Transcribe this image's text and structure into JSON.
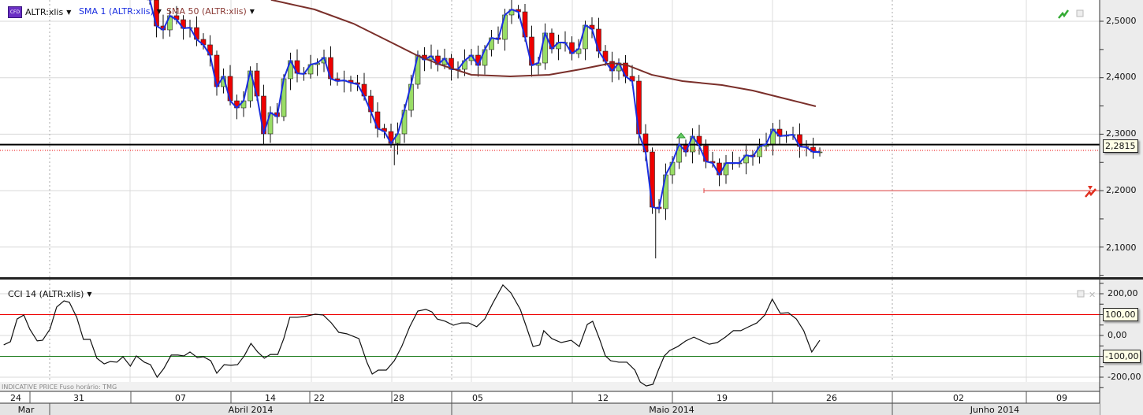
{
  "legend": {
    "symbol": "ALTR:xlis",
    "symbol_badge": "CFD",
    "sma1": "SMA 1 (ALTR:xlis)",
    "sma50": "SMA 50 (ALTR:xlis)",
    "cci": "CCI 14 (ALTR:xlis)"
  },
  "footer_note": "INDICATIVE PRICE   Fuso horário: TMG",
  "colors": {
    "up": "#99dd66",
    "down": "#ee0000",
    "sma1": "#1a2ee0",
    "sma50": "#7a2f2a",
    "cci": "#111111",
    "cci_upper": "#ee0000",
    "cci_lower": "#1a7a1a"
  },
  "price_axis": {
    "ticks": [
      "2,5000",
      "2,4000",
      "2,3000",
      "2,2000",
      "2,1000"
    ],
    "tick_values": [
      2.5,
      2.4,
      2.3,
      2.2,
      2.1
    ],
    "last_price_label": "2,2815"
  },
  "cci_axis": {
    "ticks": [
      "200,00",
      "0,00",
      "-200,00"
    ],
    "tick_values": [
      200,
      0,
      -200
    ],
    "upper_label": "100,00",
    "lower_label": "-100,00",
    "upper": 100,
    "lower": -100
  },
  "date_axis": {
    "days": [
      "24",
      "31",
      "07",
      "14",
      "22",
      "28",
      "05",
      "12",
      "19",
      "26",
      "02",
      "09"
    ],
    "months": [
      "Mar",
      "Abril 2014",
      "Maio 2014",
      "Junho 2014"
    ]
  },
  "chart_data": {
    "type": "candlestick",
    "price_range": [
      2.06,
      2.54
    ],
    "closes": [
      2.5377,
      2.4916,
      2.4847,
      2.5098,
      2.5028,
      2.4874,
      2.4888,
      2.4679,
      2.4582,
      2.44,
      2.3842,
      2.4024,
      2.3591,
      2.3466,
      2.3591,
      2.4121,
      2.3675,
      2.3006,
      2.3382,
      2.3312,
      2.3982,
      2.4303,
      2.4079,
      2.4066,
      2.4233,
      2.4261,
      2.4358,
      2.3982,
      2.394,
      2.3954,
      2.3912,
      2.3884,
      2.3675,
      2.3396,
      2.3103,
      2.3047,
      2.2838,
      2.3006,
      2.3424,
      2.3884,
      2.44,
      2.4317,
      2.4386,
      2.4233,
      2.4344,
      2.4149,
      2.4149,
      2.4303,
      2.44,
      2.4219,
      2.4498,
      2.4707,
      2.4679,
      2.5112,
      2.5209,
      2.5167,
      2.4721,
      2.4219,
      2.4261,
      2.4791,
      2.4512,
      2.4623,
      2.4623,
      2.4428,
      2.4512,
      2.493,
      2.4861,
      2.447,
      2.4289,
      2.4121,
      2.4261,
      2.4024,
      2.394,
      2.3006,
      2.2685,
      2.1709,
      2.1681,
      2.228,
      2.2503,
      2.2824,
      2.2685,
      2.2964,
      2.2796,
      2.2517,
      2.249,
      2.228,
      2.249,
      2.249,
      2.249,
      2.2629,
      2.2601,
      2.2782,
      2.2824,
      2.3089,
      2.2964,
      2.2978,
      2.2992,
      2.2782,
      2.2768,
      2.2685,
      2.2685
    ],
    "sma50": [
      [
        18.1,
        2.538
      ],
      [
        24.6,
        2.5209
      ],
      [
        30.4,
        2.4958
      ],
      [
        36.3,
        2.4609
      ],
      [
        39.8,
        2.44
      ],
      [
        43.3,
        2.4233
      ],
      [
        48,
        2.4052
      ],
      [
        53.8,
        2.4024
      ],
      [
        59.6,
        2.4052
      ],
      [
        64.3,
        2.4149
      ],
      [
        69,
        2.4261
      ],
      [
        71.3,
        2.4219
      ],
      [
        74.9,
        2.4052
      ],
      [
        79.5,
        2.394
      ],
      [
        85.4,
        2.387
      ],
      [
        90,
        2.3773
      ],
      [
        94.7,
        2.3633
      ],
      [
        99.4,
        2.3494
      ]
    ],
    "cci": [
      [
        -21.8,
        -45
      ],
      [
        -20.8,
        -30
      ],
      [
        -19.8,
        79
      ],
      [
        -18.8,
        98
      ],
      [
        -17.9,
        30
      ],
      [
        -16.8,
        -26
      ],
      [
        -16,
        -23
      ],
      [
        -14.9,
        30
      ],
      [
        -13.9,
        136
      ],
      [
        -12.8,
        166
      ],
      [
        -12,
        159
      ],
      [
        -10.9,
        87
      ],
      [
        -9.9,
        -19
      ],
      [
        -8.9,
        -19
      ],
      [
        -7.9,
        -109
      ],
      [
        -6.8,
        -136
      ],
      [
        -5.9,
        -125
      ],
      [
        -4.9,
        -128
      ],
      [
        -4,
        -102
      ],
      [
        -2.9,
        -147
      ],
      [
        -2,
        -98
      ],
      [
        -0.8,
        -128
      ],
      [
        0.1,
        -140
      ],
      [
        1.1,
        -200
      ],
      [
        2.1,
        -158
      ],
      [
        3.2,
        -94
      ],
      [
        4.2,
        -94
      ],
      [
        5.1,
        -98
      ],
      [
        6,
        -79
      ],
      [
        7.1,
        -106
      ],
      [
        8,
        -102
      ],
      [
        9.1,
        -121
      ],
      [
        10,
        -181
      ],
      [
        11.1,
        -140
      ],
      [
        12.1,
        -143
      ],
      [
        13.1,
        -140
      ],
      [
        14.1,
        -98
      ],
      [
        15.1,
        -38
      ],
      [
        16.1,
        -79
      ],
      [
        17.1,
        -109
      ],
      [
        18,
        -91
      ],
      [
        19.1,
        -91
      ],
      [
        20,
        -15
      ],
      [
        20.9,
        87
      ],
      [
        22,
        87
      ],
      [
        23.2,
        91
      ],
      [
        24.7,
        102
      ],
      [
        25.9,
        98
      ],
      [
        27.1,
        60
      ],
      [
        28.2,
        15
      ],
      [
        29.4,
        8
      ],
      [
        31.2,
        -15
      ],
      [
        32.4,
        -128
      ],
      [
        33.2,
        -185
      ],
      [
        34.1,
        -166
      ],
      [
        35.3,
        -166
      ],
      [
        36.5,
        -121
      ],
      [
        37.6,
        -53
      ],
      [
        38.8,
        42
      ],
      [
        40,
        117
      ],
      [
        41.2,
        125
      ],
      [
        42.1,
        113
      ],
      [
        42.9,
        79
      ],
      [
        44.1,
        68
      ],
      [
        45.3,
        49
      ],
      [
        46.5,
        60
      ],
      [
        47.6,
        60
      ],
      [
        48.8,
        42
      ],
      [
        50,
        79
      ],
      [
        51.2,
        155
      ],
      [
        52.7,
        242
      ],
      [
        53.9,
        204
      ],
      [
        55.3,
        125
      ],
      [
        56.2,
        42
      ],
      [
        57.2,
        -53
      ],
      [
        58.2,
        -45
      ],
      [
        58.8,
        23
      ],
      [
        60,
        -15
      ],
      [
        61.4,
        -34
      ],
      [
        62.9,
        -23
      ],
      [
        64.1,
        -53
      ],
      [
        65.3,
        53
      ],
      [
        66.1,
        68
      ],
      [
        67.1,
        -15
      ],
      [
        68,
        -98
      ],
      [
        68.8,
        -121
      ],
      [
        70,
        -128
      ],
      [
        71.2,
        -128
      ],
      [
        72.4,
        -166
      ],
      [
        73.2,
        -223
      ],
      [
        74.1,
        -242
      ],
      [
        75.1,
        -234
      ],
      [
        75.9,
        -166
      ],
      [
        76.8,
        -98
      ],
      [
        77.6,
        -72
      ],
      [
        78.8,
        -53
      ],
      [
        80,
        -26
      ],
      [
        81.2,
        -8
      ],
      [
        82.4,
        -26
      ],
      [
        83.5,
        -42
      ],
      [
        84.7,
        -34
      ],
      [
        85.9,
        -8
      ],
      [
        87.1,
        23
      ],
      [
        88.2,
        23
      ],
      [
        89.4,
        42
      ],
      [
        90.6,
        60
      ],
      [
        91.8,
        98
      ],
      [
        92.9,
        174
      ],
      [
        94.1,
        106
      ],
      [
        95.3,
        109
      ],
      [
        96.5,
        79
      ],
      [
        97.6,
        23
      ],
      [
        98.8,
        -79
      ],
      [
        100,
        -23
      ]
    ],
    "horizontal_lines": {
      "last_price": 2.2815,
      "bid": 2.2713,
      "alert": 2.2
    },
    "cci_range": [
      -280,
      260
    ]
  }
}
